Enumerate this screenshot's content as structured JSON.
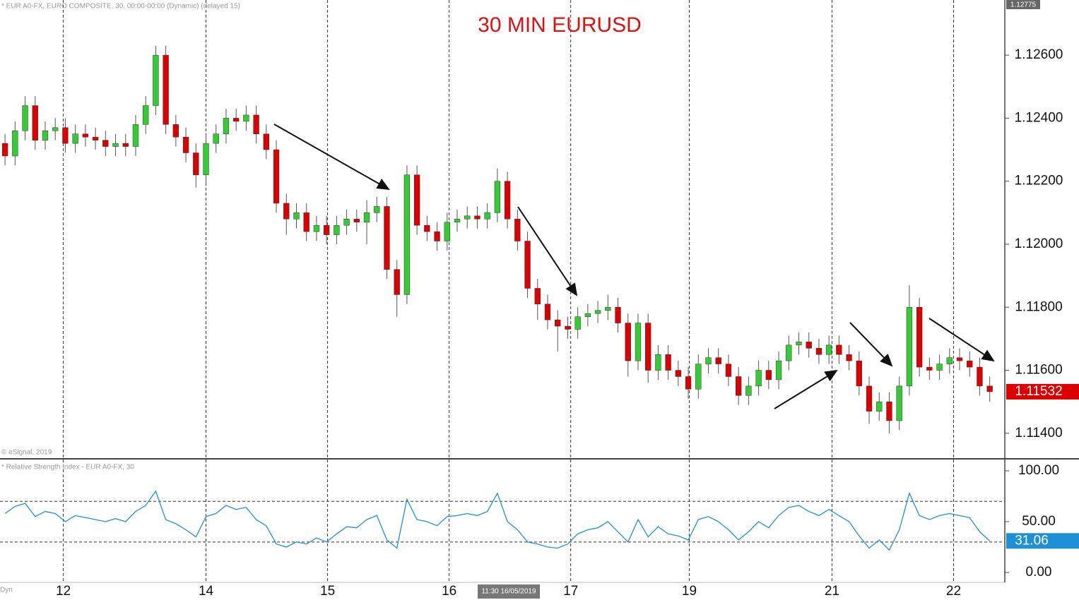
{
  "chart_data": [
    {
      "type": "candlestick",
      "title": "30 MIN EURUSD",
      "header": "* EUR A0-FX, EURO COMPOSITE, 30, 00:00-00:00 (Dynamic) (delayed 15)",
      "copyright": "© eSignal, 2019",
      "crosshair_label": "11:30 16/05/2019",
      "footer_label": "Dyn",
      "up_color": "#33cc33",
      "down_color": "#dd0000",
      "ylim": [
        1.11319,
        1.12775
      ],
      "yticks": [
        {
          "value": 1.114,
          "label": "1.11400"
        },
        {
          "value": 1.116,
          "label": "1.11600"
        },
        {
          "value": 1.118,
          "label": "1.11800"
        },
        {
          "value": 1.12,
          "label": "1.12000"
        },
        {
          "value": 1.122,
          "label": "1.12200"
        },
        {
          "value": 1.124,
          "label": "1.12400"
        },
        {
          "value": 1.126,
          "label": "1.12600"
        }
      ],
      "xlim": [
        0,
        100
      ],
      "xticks": [
        {
          "value": 6.3,
          "label": "12"
        },
        {
          "value": 20.5,
          "label": "14"
        },
        {
          "value": 32.6,
          "label": "15"
        },
        {
          "value": 44.7,
          "label": "16"
        },
        {
          "value": 56.8,
          "label": "17"
        },
        {
          "value": 68.6,
          "label": "19"
        },
        {
          "value": 82.8,
          "label": "21"
        },
        {
          "value": 94.9,
          "label": "22"
        }
      ],
      "open": [
        1.1232,
        1.1228,
        1.1236,
        1.1244,
        1.1233,
        1.1236,
        1.1237,
        1.1232,
        1.1235,
        1.1234,
        1.1233,
        1.1231,
        1.1232,
        1.1231,
        1.1238,
        1.1244,
        1.126,
        1.1238,
        1.1234,
        1.1229,
        1.1222,
        1.1232,
        1.1235,
        1.124,
        1.1239,
        1.1241,
        1.1235,
        1.123,
        1.1213,
        1.1208,
        1.121,
        1.1204,
        1.1206,
        1.1203,
        1.1206,
        1.1208,
        1.1207,
        1.121,
        1.1212,
        1.1192,
        1.1184,
        1.1222,
        1.1206,
        1.1204,
        1.1201,
        1.1207,
        1.1208,
        1.1209,
        1.1208,
        1.121,
        1.122,
        1.1208,
        1.1201,
        1.1186,
        1.1181,
        1.1176,
        1.1174,
        1.1173,
        1.1177,
        1.1178,
        1.1179,
        1.118,
        1.1175,
        1.1163,
        1.1175,
        1.116,
        1.1165,
        1.116,
        1.1158,
        1.1154,
        1.1162,
        1.1164,
        1.1162,
        1.1158,
        1.1152,
        1.1155,
        1.116,
        1.1157,
        1.1163,
        1.1168,
        1.1169,
        1.1167,
        1.1165,
        1.1168,
        1.1165,
        1.1163,
        1.1155,
        1.1147,
        1.115,
        1.1144,
        1.1155,
        1.118,
        1.1161,
        1.116,
        1.1162,
        1.1164,
        1.1163,
        1.1161,
        1.1155
      ],
      "high": [
        1.1235,
        1.1239,
        1.1247,
        1.1247,
        1.1239,
        1.124,
        1.124,
        1.1238,
        1.1238,
        1.1237,
        1.1236,
        1.1235,
        1.1235,
        1.1241,
        1.1247,
        1.1263,
        1.1263,
        1.1241,
        1.1237,
        1.1232,
        1.1235,
        1.1238,
        1.1243,
        1.1243,
        1.1244,
        1.1244,
        1.1238,
        1.1233,
        1.1216,
        1.1213,
        1.1213,
        1.1209,
        1.1209,
        1.1209,
        1.1211,
        1.1211,
        1.1214,
        1.1215,
        1.1215,
        1.1195,
        1.1225,
        1.1225,
        1.1209,
        1.1207,
        1.121,
        1.1211,
        1.1212,
        1.1212,
        1.1213,
        1.1224,
        1.1223,
        1.1211,
        1.1204,
        1.1189,
        1.1184,
        1.1179,
        1.1177,
        1.118,
        1.1181,
        1.1182,
        1.1184,
        1.1183,
        1.1178,
        1.1178,
        1.1178,
        1.1168,
        1.1168,
        1.1163,
        1.1161,
        1.1165,
        1.1167,
        1.1167,
        1.1165,
        1.1161,
        1.1158,
        1.1163,
        1.1163,
        1.1166,
        1.1171,
        1.1172,
        1.1172,
        1.117,
        1.1171,
        1.1171,
        1.1168,
        1.1166,
        1.1158,
        1.1153,
        1.1153,
        1.1158,
        1.1187,
        1.1183,
        1.1164,
        1.1165,
        1.1167,
        1.1167,
        1.1166,
        1.1164,
        1.1158
      ],
      "low": [
        1.1225,
        1.1225,
        1.1233,
        1.123,
        1.123,
        1.1233,
        1.1229,
        1.1229,
        1.1231,
        1.123,
        1.1228,
        1.1228,
        1.1228,
        1.1228,
        1.1235,
        1.1241,
        1.1235,
        1.1231,
        1.1226,
        1.1218,
        1.1219,
        1.1229,
        1.1232,
        1.1236,
        1.1236,
        1.1232,
        1.1227,
        1.121,
        1.1203,
        1.1205,
        1.1201,
        1.1201,
        1.12,
        1.12,
        1.1203,
        1.1204,
        1.12,
        1.1207,
        1.1189,
        1.1177,
        1.1181,
        1.1203,
        1.1201,
        1.1198,
        1.1198,
        1.1204,
        1.1205,
        1.1205,
        1.1205,
        1.1207,
        1.1205,
        1.1198,
        1.1183,
        1.1176,
        1.1173,
        1.1166,
        1.117,
        1.117,
        1.1174,
        1.1175,
        1.1176,
        1.1172,
        1.1158,
        1.116,
        1.1156,
        1.1157,
        1.1157,
        1.1155,
        1.1151,
        1.1151,
        1.1159,
        1.1159,
        1.1155,
        1.1149,
        1.1149,
        1.1152,
        1.1154,
        1.1154,
        1.116,
        1.1165,
        1.1164,
        1.1162,
        1.1162,
        1.1162,
        1.116,
        1.1152,
        1.1143,
        1.1144,
        1.114,
        1.1141,
        1.1152,
        1.1158,
        1.1157,
        1.1157,
        1.1159,
        1.116,
        1.1158,
        1.1152,
        1.115
      ],
      "close": [
        1.1228,
        1.1236,
        1.1244,
        1.1233,
        1.1236,
        1.1237,
        1.1232,
        1.1235,
        1.1234,
        1.1233,
        1.1231,
        1.1232,
        1.1231,
        1.1238,
        1.1244,
        1.126,
        1.1238,
        1.1234,
        1.1229,
        1.1222,
        1.1232,
        1.1235,
        1.124,
        1.1239,
        1.1241,
        1.1235,
        1.123,
        1.1213,
        1.1208,
        1.121,
        1.1204,
        1.1206,
        1.1203,
        1.1206,
        1.1208,
        1.1207,
        1.121,
        1.1212,
        1.1192,
        1.1184,
        1.1222,
        1.1206,
        1.1204,
        1.1201,
        1.1207,
        1.1208,
        1.1209,
        1.1208,
        1.121,
        1.122,
        1.1208,
        1.1201,
        1.1186,
        1.1181,
        1.1176,
        1.1174,
        1.1173,
        1.1177,
        1.1178,
        1.1179,
        1.118,
        1.1175,
        1.1163,
        1.1175,
        1.116,
        1.1165,
        1.116,
        1.1158,
        1.1154,
        1.1162,
        1.1164,
        1.1162,
        1.1158,
        1.1152,
        1.1155,
        1.116,
        1.1157,
        1.1163,
        1.1168,
        1.1169,
        1.1167,
        1.1165,
        1.1168,
        1.1165,
        1.1163,
        1.1155,
        1.1147,
        1.115,
        1.1144,
        1.1155,
        1.118,
        1.1161,
        1.116,
        1.1162,
        1.1164,
        1.1163,
        1.1161,
        1.1155,
        1.11532
      ]
    },
    {
      "type": "line",
      "title": "* Relative Strength Index - EUR A0-FX, 30",
      "color": "#1e90d6",
      "ylim": [
        -9.7,
        111.8
      ],
      "yticks": [
        {
          "value": 0,
          "label": "0.00"
        },
        {
          "value": 50,
          "label": "50.00"
        },
        {
          "value": 100,
          "label": "100.00"
        }
      ],
      "levels": [
        30,
        70
      ],
      "values": [
        58,
        65,
        68,
        55,
        60,
        58,
        50,
        56,
        54,
        52,
        50,
        53,
        50,
        60,
        66,
        80,
        52,
        48,
        42,
        35,
        55,
        58,
        66,
        62,
        64,
        52,
        46,
        28,
        25,
        30,
        28,
        34,
        30,
        38,
        45,
        44,
        52,
        56,
        32,
        24,
        72,
        52,
        50,
        46,
        55,
        56,
        58,
        56,
        60,
        78,
        50,
        42,
        30,
        28,
        25,
        24,
        28,
        38,
        42,
        44,
        50,
        40,
        30,
        52,
        35,
        45,
        38,
        36,
        32,
        52,
        55,
        50,
        42,
        32,
        40,
        50,
        44,
        56,
        64,
        66,
        60,
        56,
        62,
        56,
        50,
        36,
        24,
        32,
        22,
        42,
        78,
        56,
        52,
        56,
        58,
        56,
        54,
        40,
        31.06
      ]
    }
  ]
}
